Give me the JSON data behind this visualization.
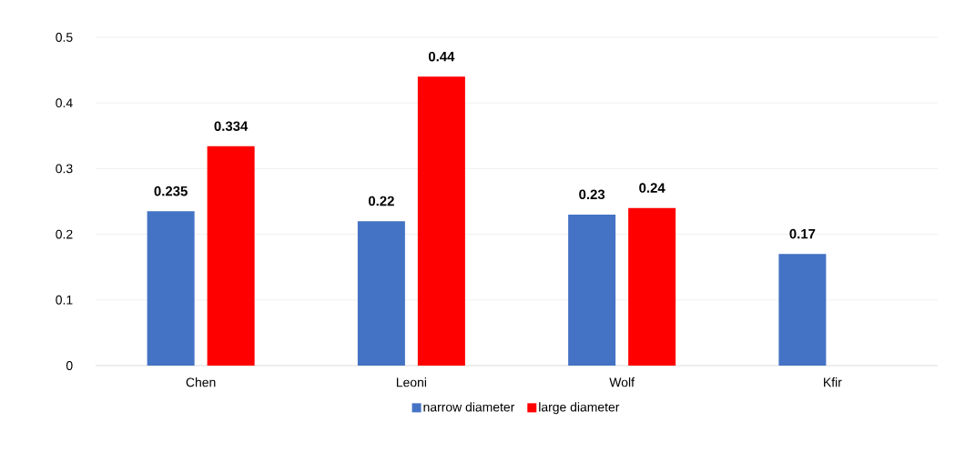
{
  "chart_data": {
    "type": "bar",
    "categories": [
      "Chen",
      "Leoni",
      "Wolf",
      "Kfir"
    ],
    "series": [
      {
        "name": "narrow diameter",
        "color": "#4472c4",
        "values": [
          0.235,
          0.22,
          0.23,
          0.17
        ]
      },
      {
        "name": "large diameter",
        "color": "#ff0000",
        "values": [
          0.334,
          0.44,
          0.24,
          null
        ]
      }
    ],
    "ylim": [
      0,
      0.5
    ],
    "yticks": [
      0,
      0.1,
      0.2,
      0.3,
      0.4,
      0.5
    ],
    "grid": "y",
    "legend": "bottom",
    "data_labels": true
  }
}
